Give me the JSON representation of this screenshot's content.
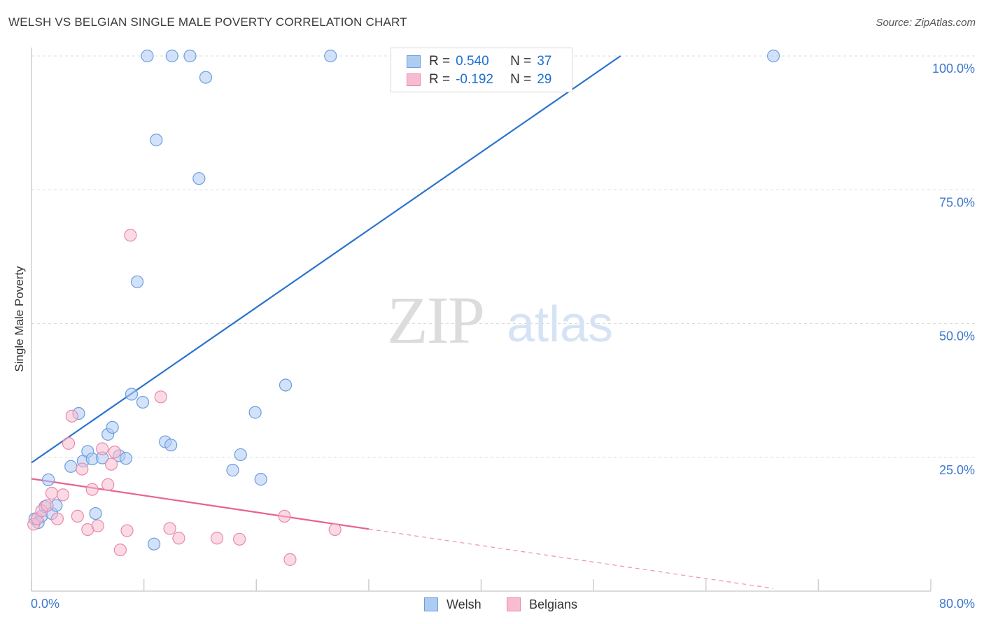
{
  "title": "WELSH VS BELGIAN SINGLE MALE POVERTY CORRELATION CHART",
  "source": "Source: ZipAtlas.com",
  "watermark": {
    "zip": "ZIP",
    "atlas": "atlas"
  },
  "legend": {
    "rows": [
      {
        "r_label": "R =",
        "r_value": "0.540",
        "n_label": "N =",
        "n_value": "37"
      },
      {
        "r_label": "R =",
        "r_value": "-0.192",
        "n_label": "N =",
        "n_value": "29"
      }
    ]
  },
  "bottom_legend": {
    "welsh": "Welsh",
    "belgians": "Belgians"
  },
  "colors": {
    "welsh_fill": "#aecbf2",
    "welsh_stroke": "#6a9ee0",
    "welsh_line": "#2a73cf",
    "belgian_fill": "#f7bcd0",
    "belgian_stroke": "#e88aaa",
    "belgian_line": "#e8628f",
    "tick_label": "#3d78cc"
  },
  "chart_data": {
    "type": "scatter",
    "title": "WELSH VS BELGIAN SINGLE MALE POVERTY CORRELATION CHART",
    "xlabel": "",
    "ylabel": "Single Male Poverty",
    "xlim": [
      0,
      80
    ],
    "ylim": [
      0,
      100
    ],
    "x_tick_labels": [
      "0.0%",
      "80.0%"
    ],
    "y_ticks": [
      25,
      50,
      75,
      100
    ],
    "y_tick_labels": [
      "25.0%",
      "50.0%",
      "75.0%",
      "100.0%"
    ],
    "grid": true,
    "legend_position": "top-center",
    "series": [
      {
        "name": "Welsh",
        "points": [
          [
            0.3,
            13.5
          ],
          [
            0.6,
            12.8
          ],
          [
            0.9,
            14.0
          ],
          [
            1.2,
            15.8
          ],
          [
            1.5,
            20.8
          ],
          [
            1.8,
            14.5
          ],
          [
            2.2,
            16.0
          ],
          [
            3.5,
            23.3
          ],
          [
            4.2,
            33.2
          ],
          [
            4.6,
            24.3
          ],
          [
            5.0,
            26.1
          ],
          [
            5.4,
            24.7
          ],
          [
            5.7,
            14.5
          ],
          [
            6.3,
            24.9
          ],
          [
            6.8,
            29.3
          ],
          [
            7.2,
            30.6
          ],
          [
            7.8,
            25.3
          ],
          [
            8.4,
            24.8
          ],
          [
            8.9,
            36.8
          ],
          [
            9.4,
            57.8
          ],
          [
            9.9,
            35.3
          ],
          [
            10.3,
            100.0
          ],
          [
            10.9,
            8.8
          ],
          [
            11.1,
            84.3
          ],
          [
            11.9,
            27.9
          ],
          [
            12.4,
            27.3
          ],
          [
            12.5,
            100.0
          ],
          [
            14.1,
            100.0
          ],
          [
            14.9,
            77.1
          ],
          [
            15.5,
            96.0
          ],
          [
            17.9,
            22.6
          ],
          [
            18.6,
            25.5
          ],
          [
            19.9,
            33.4
          ],
          [
            20.4,
            20.9
          ],
          [
            22.6,
            38.5
          ],
          [
            26.6,
            100.0
          ],
          [
            66.0,
            100.0
          ]
        ],
        "trend": {
          "x_start": 0,
          "y_start": 24.0,
          "x_end": 52.4,
          "y_end": 100.0
        }
      },
      {
        "name": "Belgians",
        "points": [
          [
            0.2,
            12.5
          ],
          [
            0.5,
            13.5
          ],
          [
            0.9,
            15.0
          ],
          [
            1.4,
            16.0
          ],
          [
            1.8,
            18.3
          ],
          [
            2.3,
            13.5
          ],
          [
            2.8,
            18.0
          ],
          [
            3.3,
            27.6
          ],
          [
            3.6,
            32.7
          ],
          [
            4.1,
            14.0
          ],
          [
            4.5,
            22.8
          ],
          [
            5.0,
            11.5
          ],
          [
            5.4,
            19.0
          ],
          [
            5.9,
            12.2
          ],
          [
            6.3,
            26.6
          ],
          [
            6.8,
            19.9
          ],
          [
            7.1,
            23.7
          ],
          [
            7.4,
            26.0
          ],
          [
            7.9,
            7.7
          ],
          [
            8.5,
            11.3
          ],
          [
            8.8,
            66.5
          ],
          [
            11.5,
            36.3
          ],
          [
            12.3,
            11.7
          ],
          [
            13.1,
            9.9
          ],
          [
            16.5,
            9.9
          ],
          [
            18.5,
            9.7
          ],
          [
            22.5,
            14.0
          ],
          [
            23.0,
            5.9
          ],
          [
            27.0,
            11.5
          ]
        ],
        "trend": {
          "x_start": 0,
          "y_start": 21.0,
          "x_end": 30.0,
          "y_end": 11.6
        },
        "trend_extension": {
          "x_start": 30.0,
          "y_start": 11.6,
          "x_end": 66.0,
          "y_end": 0.5
        }
      }
    ]
  }
}
